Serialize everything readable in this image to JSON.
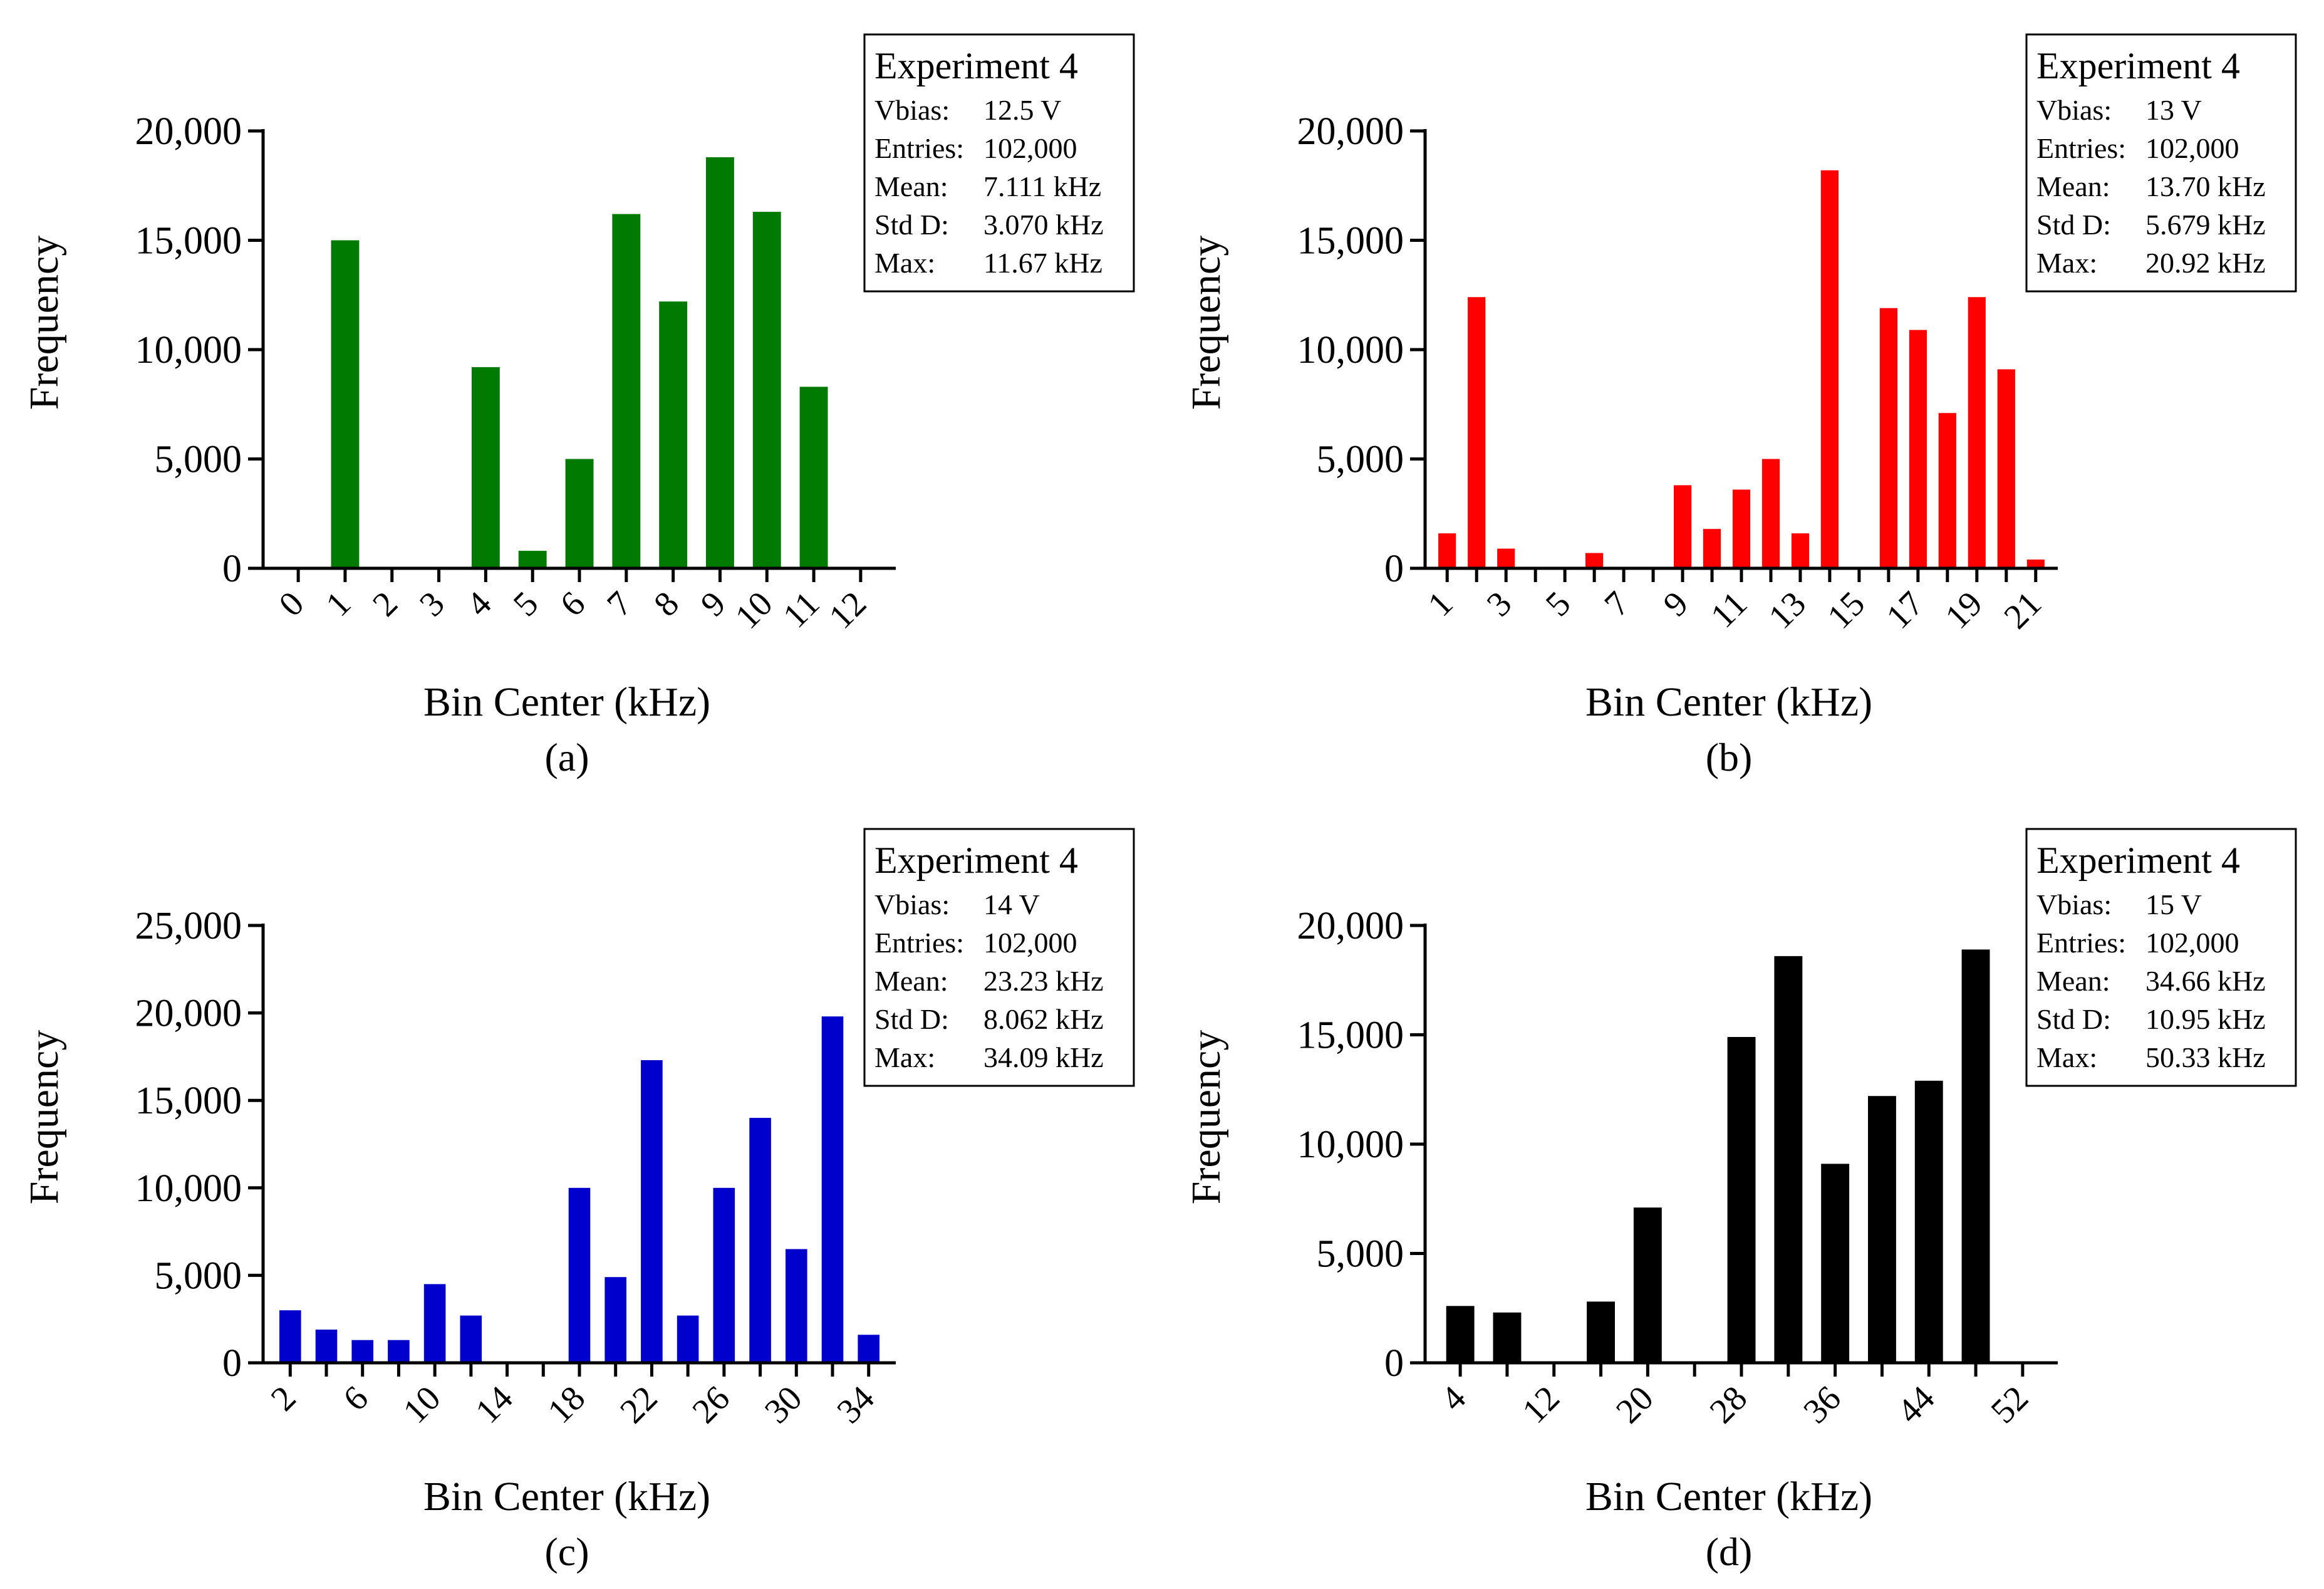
{
  "chart_data": [
    {
      "type": "bar",
      "panel": "a",
      "caption": "(a)",
      "color": "#007A00",
      "xlabel": "Bin Center (kHz)",
      "ylabel": "Frequency",
      "ylim": [
        0,
        20000
      ],
      "y_ticks": [
        "0",
        "5,000",
        "10,000",
        "15,000",
        "20,000"
      ],
      "x_tick_labels": [
        "0",
        "1",
        "2",
        "3",
        "4",
        "5",
        "6",
        "7",
        "8",
        "9",
        "10",
        "11",
        "12"
      ],
      "categories": [
        "0",
        "1",
        "2",
        "3",
        "4",
        "5",
        "6",
        "7",
        "8",
        "9",
        "10",
        "11",
        "12"
      ],
      "values": [
        0,
        15000,
        0,
        0,
        9200,
        800,
        5000,
        16200,
        12200,
        18800,
        16300,
        8300,
        0
      ],
      "stats": {
        "title": "Experiment 4",
        "rows": [
          {
            "label": "Vbias:",
            "value": "12.5 V"
          },
          {
            "label": "Entries:",
            "value": "102,000"
          },
          {
            "label": "Mean:",
            "value": "7.111 kHz"
          },
          {
            "label": "Std D:",
            "value": "3.070 kHz"
          },
          {
            "label": "Max:",
            "value": "11.67 kHz"
          }
        ]
      }
    },
    {
      "type": "bar",
      "panel": "b",
      "caption": "(b)",
      "color": "#FF0000",
      "xlabel": "Bin Center (kHz)",
      "ylabel": "Frequency",
      "ylim": [
        0,
        20000
      ],
      "y_ticks": [
        "0",
        "5,000",
        "10,000",
        "15,000",
        "20,000"
      ],
      "x_tick_labels": [
        "1",
        "3",
        "5",
        "7",
        "9",
        "11",
        "13",
        "15",
        "17",
        "19",
        "21"
      ],
      "categories": [
        "1",
        "2",
        "3",
        "4",
        "5",
        "6",
        "7",
        "8",
        "9",
        "10",
        "11",
        "12",
        "13",
        "14",
        "15",
        "16",
        "17",
        "18",
        "19",
        "20",
        "21"
      ],
      "values": [
        1600,
        12400,
        900,
        0,
        0,
        700,
        0,
        0,
        3800,
        1800,
        3600,
        5000,
        1600,
        18200,
        0,
        11900,
        10900,
        7100,
        12400,
        9100,
        400
      ],
      "stats": {
        "title": "Experiment 4",
        "rows": [
          {
            "label": "Vbias:",
            "value": "13 V"
          },
          {
            "label": "Entries:",
            "value": "102,000"
          },
          {
            "label": "Mean:",
            "value": "13.70 kHz"
          },
          {
            "label": "Std D:",
            "value": "5.679 kHz"
          },
          {
            "label": "Max:",
            "value": "20.92 kHz"
          }
        ]
      }
    },
    {
      "type": "bar",
      "panel": "c",
      "caption": "(c)",
      "color": "#0000CC",
      "xlabel": "Bin Center (kHz)",
      "ylabel": "Frequency",
      "ylim": [
        0,
        25000
      ],
      "y_ticks": [
        "0",
        "5,000",
        "10,000",
        "15,000",
        "20,000",
        "25,000"
      ],
      "x_tick_labels": [
        "2",
        "6",
        "10",
        "14",
        "18",
        "22",
        "26",
        "30",
        "34"
      ],
      "categories": [
        "2",
        "4",
        "6",
        "8",
        "10",
        "12",
        "14",
        "16",
        "18",
        "20",
        "22",
        "24",
        "26",
        "28",
        "30",
        "32",
        "34"
      ],
      "values": [
        3000,
        1900,
        1300,
        1300,
        4500,
        2700,
        0,
        0,
        10000,
        4900,
        17300,
        2700,
        10000,
        14000,
        6500,
        19800,
        1600
      ],
      "stats": {
        "title": "Experiment 4",
        "rows": [
          {
            "label": "Vbias:",
            "value": "14 V"
          },
          {
            "label": "Entries:",
            "value": "102,000"
          },
          {
            "label": "Mean:",
            "value": "23.23 kHz"
          },
          {
            "label": "Std D:",
            "value": "8.062 kHz"
          },
          {
            "label": "Max:",
            "value": "34.09 kHz"
          }
        ]
      }
    },
    {
      "type": "bar",
      "panel": "d",
      "caption": "(d)",
      "color": "#000000",
      "xlabel": "Bin Center (kHz)",
      "ylabel": "Frequency",
      "ylim": [
        0,
        20000
      ],
      "y_ticks": [
        "0",
        "5,000",
        "10,000",
        "15,000",
        "20,000"
      ],
      "x_tick_labels": [
        "4",
        "12",
        "20",
        "28",
        "36",
        "44",
        "52"
      ],
      "categories": [
        "4",
        "8",
        "12",
        "16",
        "20",
        "24",
        "28",
        "32",
        "36",
        "40",
        "44",
        "48",
        "52"
      ],
      "values": [
        2600,
        2300,
        0,
        2800,
        7100,
        0,
        14900,
        18600,
        9100,
        12200,
        12900,
        18900,
        0
      ],
      "stats": {
        "title": "Experiment 4",
        "rows": [
          {
            "label": "Vbias:",
            "value": "15 V"
          },
          {
            "label": "Entries:",
            "value": "102,000"
          },
          {
            "label": "Mean:",
            "value": "34.66 kHz"
          },
          {
            "label": "Std D:",
            "value": "10.95 kHz"
          },
          {
            "label": "Max:",
            "value": "50.33 kHz"
          }
        ]
      }
    }
  ]
}
